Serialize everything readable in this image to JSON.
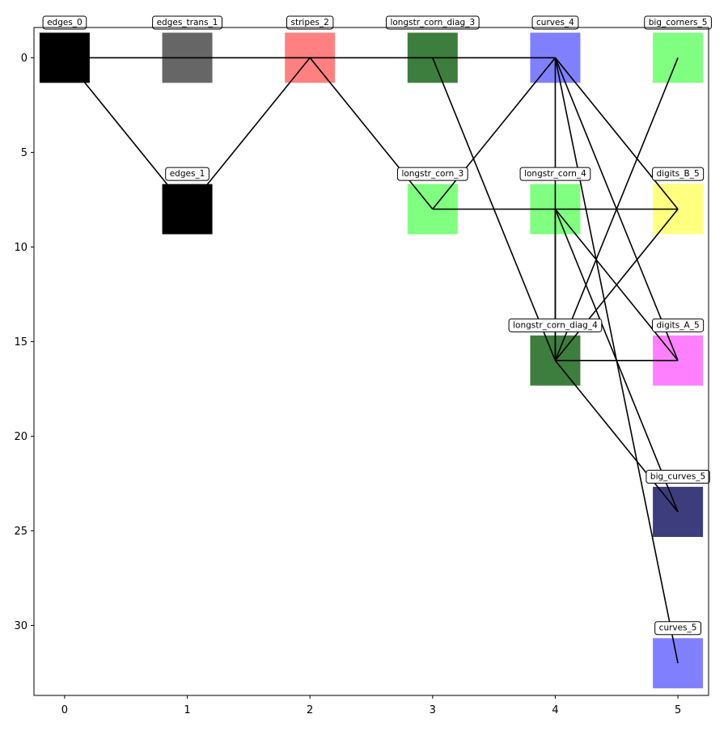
{
  "chart_data": {
    "type": "network",
    "title": "",
    "xlabel": "",
    "ylabel": "",
    "xlim": [
      -0.25,
      5.25
    ],
    "ylim": [
      33.7,
      -1.6
    ],
    "y_inverted": true,
    "x_ticks": [
      0,
      1,
      2,
      3,
      4,
      5
    ],
    "y_ticks": [
      0,
      5,
      10,
      15,
      20,
      25,
      30
    ],
    "grid": false,
    "nodes": [
      {
        "id": "edges_0",
        "label": "edges_0",
        "x": 0,
        "y": 0,
        "color": "#000000"
      },
      {
        "id": "edges_trans_1",
        "label": "edges_trans_1",
        "x": 1,
        "y": 0,
        "color": "#666666"
      },
      {
        "id": "edges_1",
        "label": "edges_1",
        "x": 1,
        "y": 8,
        "color": "#000000"
      },
      {
        "id": "stripes_2",
        "label": "stripes_2",
        "x": 2,
        "y": 0,
        "color": "#ff8080"
      },
      {
        "id": "longstr_corn_diag_3",
        "label": "longstr_corn_diag_3",
        "x": 3,
        "y": 0,
        "color": "#3d7d3d"
      },
      {
        "id": "longstr_corn_3",
        "label": "longstr_corn_3",
        "x": 3,
        "y": 8,
        "color": "#80ff80"
      },
      {
        "id": "curves_4",
        "label": "curves_4",
        "x": 4,
        "y": 0,
        "color": "#8080ff"
      },
      {
        "id": "longstr_corn_4",
        "label": "longstr_corn_4",
        "x": 4,
        "y": 8,
        "color": "#80ff80"
      },
      {
        "id": "longstr_corn_diag_4",
        "label": "longstr_corn_diag_4",
        "x": 4,
        "y": 16,
        "color": "#3d7d3d"
      },
      {
        "id": "big_corners_5",
        "label": "big_corners_5",
        "x": 5,
        "y": 0,
        "color": "#80ff80"
      },
      {
        "id": "digits_B_5",
        "label": "digits_B_5",
        "x": 5,
        "y": 8,
        "color": "#ffff80"
      },
      {
        "id": "digits_A_5",
        "label": "digits_A_5",
        "x": 5,
        "y": 16,
        "color": "#ff80ff"
      },
      {
        "id": "big_curves_5",
        "label": "big_curves_5",
        "x": 5,
        "y": 24,
        "color": "#3d3d7d"
      },
      {
        "id": "curves_5",
        "label": "curves_5",
        "x": 5,
        "y": 32,
        "color": "#8080ff"
      }
    ],
    "edges": [
      [
        "edges_0",
        "curves_4"
      ],
      [
        "edges_0",
        "edges_1"
      ],
      [
        "edges_1",
        "stripes_2"
      ],
      [
        "stripes_2",
        "longstr_corn_3"
      ],
      [
        "longstr_corn_diag_3",
        "longstr_corn_diag_4"
      ],
      [
        "longstr_corn_3",
        "curves_4"
      ],
      [
        "longstr_corn_3",
        "digits_B_5"
      ],
      [
        "curves_4",
        "digits_B_5"
      ],
      [
        "curves_4",
        "digits_A_5"
      ],
      [
        "curves_4",
        "longstr_corn_diag_4"
      ],
      [
        "curves_4",
        "curves_5"
      ],
      [
        "longstr_corn_4",
        "digits_A_5"
      ],
      [
        "longstr_corn_4",
        "big_curves_5"
      ],
      [
        "longstr_corn_diag_4",
        "big_corners_5"
      ],
      [
        "longstr_corn_diag_4",
        "digits_B_5"
      ],
      [
        "longstr_corn_diag_4",
        "digits_A_5"
      ],
      [
        "longstr_corn_diag_4",
        "big_curves_5"
      ],
      [
        "longstr_corn_diag_4",
        "longstr_corn_4"
      ]
    ]
  }
}
